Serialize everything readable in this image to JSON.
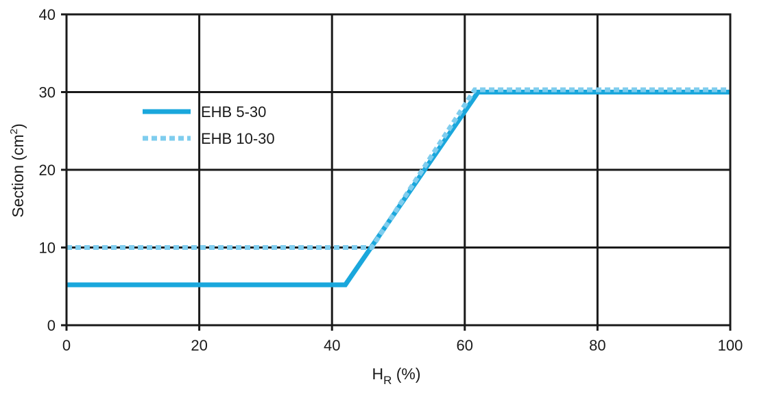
{
  "chart_data": {
    "type": "line",
    "title": "",
    "xlabel_main": "H",
    "xlabel_sub": "R",
    "xlabel_rest": " (%)",
    "ylabel_main": "Section (cm",
    "ylabel_sup": "2",
    "ylabel_rest": ")",
    "xlim": [
      0,
      100
    ],
    "ylim": [
      0,
      40
    ],
    "x_ticks": [
      0,
      20,
      40,
      60,
      80,
      100
    ],
    "y_ticks": [
      0,
      10,
      20,
      30,
      40
    ],
    "grid": true,
    "legend_position": "upper-left",
    "series": [
      {
        "name": "EHB 5-30",
        "style": "solid",
        "color": "#1aa7dc",
        "points": [
          [
            0,
            5.2
          ],
          [
            42,
            5.2
          ],
          [
            62,
            30
          ],
          [
            100,
            30
          ]
        ]
      },
      {
        "name": "EHB 10-30",
        "style": "dotted",
        "color": "#7fcdee",
        "points": [
          [
            0,
            10
          ],
          [
            46,
            10
          ],
          [
            61.5,
            30.3
          ],
          [
            100,
            30.3
          ]
        ]
      }
    ]
  }
}
